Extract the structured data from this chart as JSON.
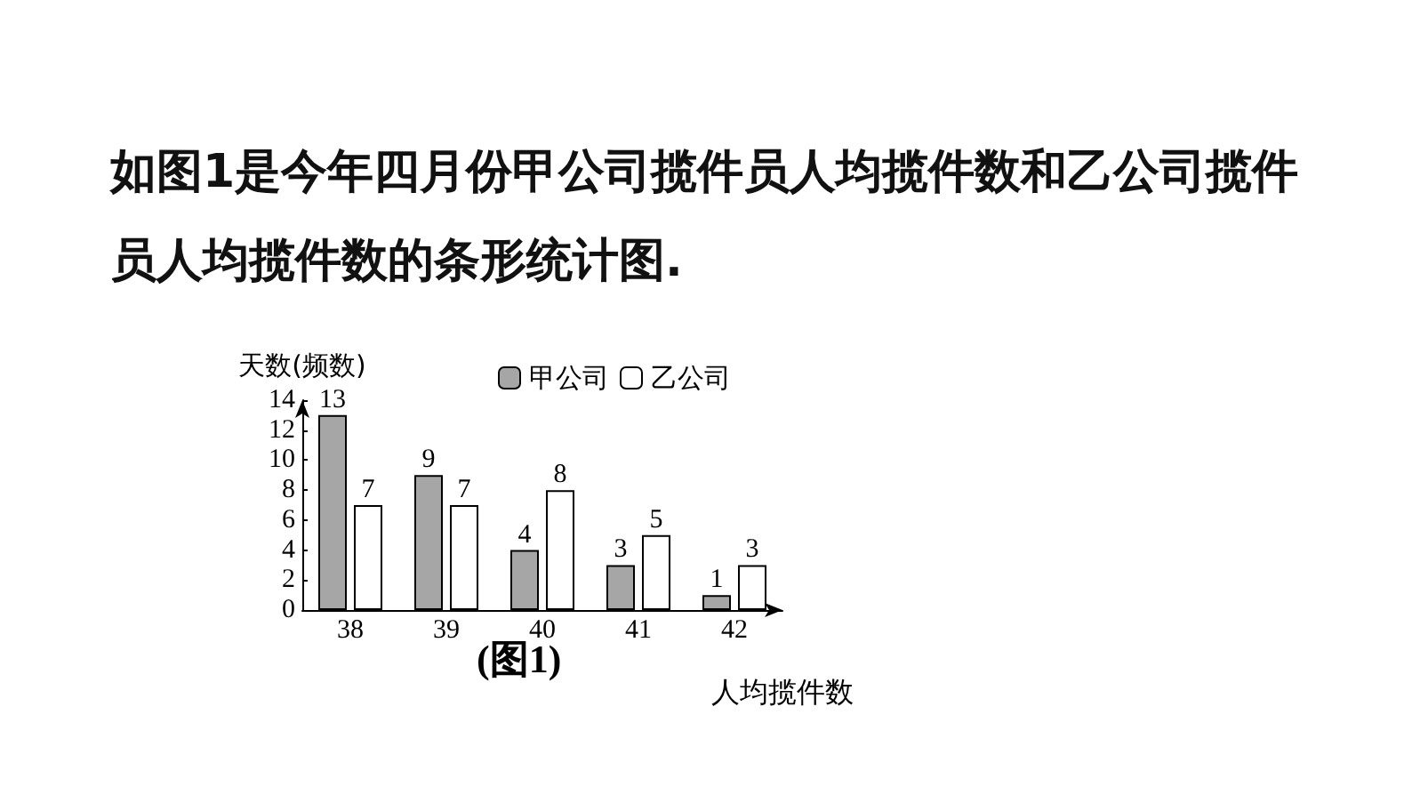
{
  "chart_data": {
    "type": "bar",
    "title": "如图1是今年四月份甲公司揽件员人均揽件数和乙公司揽件员人均揽件数的条形统计图.",
    "xlabel": "人均揽件数",
    "ylabel": "天数(频数)",
    "categories": [
      "38",
      "39",
      "40",
      "41",
      "42"
    ],
    "series": [
      {
        "name": "甲公司",
        "color": "#a6a6a6",
        "values": [
          13,
          9,
          4,
          3,
          1
        ]
      },
      {
        "name": "乙公司",
        "color": "#ffffff",
        "values": [
          7,
          7,
          8,
          5,
          3
        ]
      }
    ],
    "ylim": [
      0,
      14
    ],
    "yticks": [
      0,
      2,
      4,
      6,
      8,
      10,
      12,
      14
    ],
    "grid": false,
    "legend": "top",
    "data_labels": true,
    "annotations": [
      "(图1)"
    ]
  }
}
